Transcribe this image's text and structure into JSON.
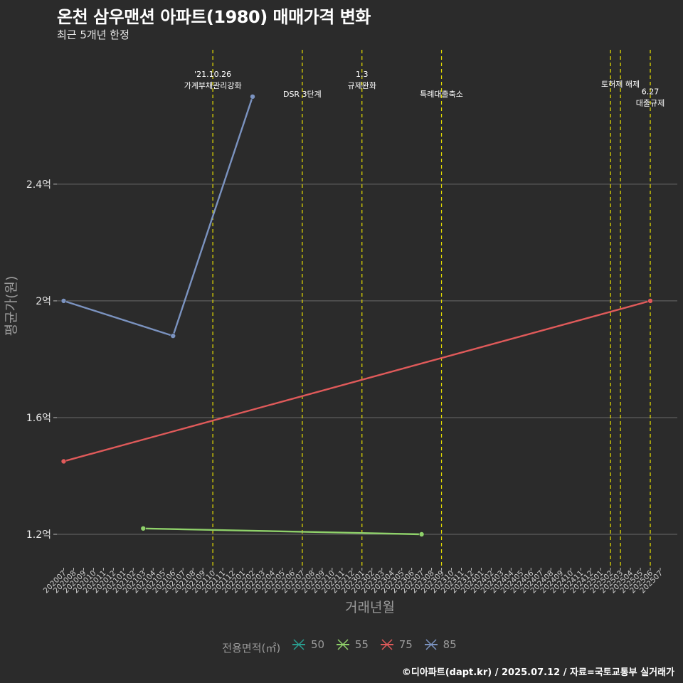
{
  "header": {
    "title": "온천 삼우맨션 아파트(1980) 매매가격 변화",
    "subtitle": "최근 5개년 한정"
  },
  "footer": {
    "credit": "©디아파트(dapt.kr) / 2025.07.12 / 자료=국토교통부 실거래가"
  },
  "chart_data": {
    "type": "line",
    "xlabel": "거래년월",
    "ylabel": "평균가(원)",
    "categories": [
      "202007",
      "202008",
      "202009",
      "202010",
      "202011",
      "202012",
      "202101",
      "202102",
      "202103",
      "202104",
      "202105",
      "202106",
      "202107",
      "202108",
      "202109",
      "202110",
      "202111",
      "202112",
      "202201",
      "202202",
      "202203",
      "202204",
      "202205",
      "202206",
      "202207",
      "202208",
      "202209",
      "202210",
      "202211",
      "202212",
      "202301",
      "202302",
      "202303",
      "202304",
      "202305",
      "202306",
      "202307",
      "202308",
      "202309",
      "202310",
      "202311",
      "202312",
      "202401",
      "202402",
      "202403",
      "202404",
      "202405",
      "202406",
      "202407",
      "202408",
      "202409",
      "202410",
      "202411",
      "202412",
      "202501",
      "202502",
      "202503",
      "202504",
      "202505",
      "202506",
      "202507"
    ],
    "yticks": [
      1.2,
      1.6,
      2.0,
      2.4
    ],
    "ytick_labels": [
      "1.2억",
      "1.6억",
      "2억",
      "2.4억"
    ],
    "ylim": [
      1.1,
      2.88
    ],
    "series": [
      {
        "name": "50",
        "color": "#2a9d8f",
        "points": []
      },
      {
        "name": "55",
        "color": "#8fd16a",
        "points": [
          [
            "202103",
            1.22
          ],
          [
            "202307",
            1.2
          ]
        ]
      },
      {
        "name": "75",
        "color": "#e05a5a",
        "points": [
          [
            "202007",
            1.45
          ],
          [
            "202506",
            2.0
          ]
        ]
      },
      {
        "name": "85",
        "color": "#7b93c0",
        "points": [
          [
            "202007",
            2.0
          ],
          [
            "202106",
            1.88
          ],
          [
            "202202",
            2.7
          ]
        ]
      }
    ],
    "events": [
      {
        "month": "202110",
        "lines": [
          "'21.10.26",
          "가계부채관리강화"
        ],
        "row": 1
      },
      {
        "month": "202207",
        "lines": [
          "DSR 3단계"
        ],
        "row": 3
      },
      {
        "month": "202301",
        "lines": [
          "1.3",
          "규제완화"
        ],
        "row": 1
      },
      {
        "month": "202309",
        "lines": [
          "특례대출축소"
        ],
        "row": 3
      },
      {
        "month": "202502",
        "lines": [],
        "row": 0
      },
      {
        "month": "202503",
        "lines": [
          "토허제 해제"
        ],
        "row": 2
      },
      {
        "month": "202506",
        "lines": [
          "6.27",
          "대출규제"
        ],
        "row": 2.75
      }
    ]
  },
  "legend": {
    "title": "전용면적(㎡)",
    "items": [
      {
        "label": "50",
        "color": "#2a9d8f"
      },
      {
        "label": "55",
        "color": "#8fd16a"
      },
      {
        "label": "75",
        "color": "#e05a5a"
      },
      {
        "label": "85",
        "color": "#7b93c0"
      }
    ]
  }
}
